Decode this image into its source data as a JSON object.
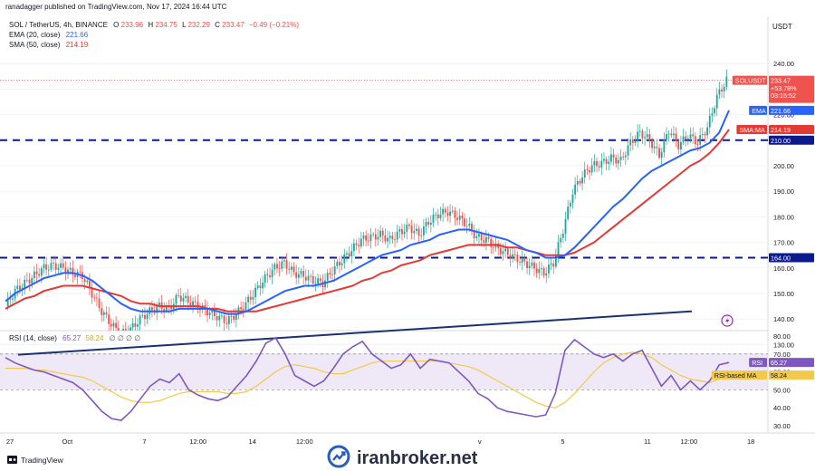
{
  "header": {
    "published": "ranadagger published on TradingView.com, Nov 17, 2024 16:44 UTC",
    "symbol": "SOL / TetherUS, 4h, BINANCE",
    "ohlc": {
      "o_label": "O",
      "o": "233.96",
      "h_label": "H",
      "h": "234.75",
      "l_label": "L",
      "l": "232.29",
      "c_label": "C",
      "c": "233.47",
      "change": "−0.49 (−0.21%)"
    },
    "ema_label": "EMA (20, close)",
    "ema_value": "221.66",
    "sma_label": "SMA (50, close)",
    "sma_value": "214.19"
  },
  "currency": "USDT",
  "price_axis": {
    "ticks": [
      "240.00",
      "230.00",
      "220.00",
      "210.00",
      "200.00",
      "190.00",
      "180.00",
      "170.00",
      "160.00",
      "150.00",
      "140.00",
      "130.00"
    ],
    "tick_values": [
      240,
      230,
      220,
      210,
      200,
      190,
      180,
      170,
      160,
      150,
      140,
      130
    ]
  },
  "badges": {
    "symbol_price": {
      "label": "SOLUSDT",
      "value": "233.47",
      "change": "+53.78%",
      "timer": "03:15:52"
    },
    "ema": {
      "label": "EMA",
      "value": "221.66"
    },
    "sma": {
      "label": "SMA:MA",
      "value": "214.19"
    },
    "level_210": "210.00",
    "level_164": "164.00"
  },
  "rsi": {
    "label": "RSI (14, close)",
    "value": "65.27",
    "ma_value": "58.24",
    "extras": "∅ ∅ ∅ ∅",
    "badge_label": "RSI",
    "ma_badge_label": "RSI-based MA",
    "ticks": [
      "80.00",
      "70.00",
      "60.00",
      "50.00",
      "40.00",
      "30.00"
    ],
    "tick_values": [
      80,
      70,
      60,
      50,
      40,
      30
    ]
  },
  "time_axis": [
    "27",
    "Oct",
    "7",
    "12:00",
    "14",
    "12:00",
    "v",
    "5",
    "11",
    "12:00",
    "18"
  ],
  "footer": {
    "brand": "TradingView",
    "watermark": "iranbroker.net"
  },
  "colors": {
    "up": "#26a69a",
    "down": "#ef5350",
    "ema": "#2962ff",
    "sma": "#e53935",
    "level": "#0d1a8c",
    "trend": "#1a3270",
    "rsi": "#7e57c2",
    "rsi_ma": "#f2c94c"
  },
  "chart_data": {
    "type": "line",
    "interval": "4h",
    "ylim": [
      130,
      245
    ],
    "horizontal_levels": [
      210,
      164
    ],
    "trendline": {
      "from": 126,
      "to": 143
    },
    "series": [
      {
        "name": "SOL / TetherUS",
        "values": [
          145,
          151,
          154,
          157,
          160,
          161,
          160,
          158,
          157,
          150,
          143,
          138,
          134,
          136,
          140,
          143,
          145,
          144,
          149,
          147,
          145,
          143,
          141,
          139,
          142,
          146,
          151,
          156,
          160,
          162,
          158,
          157,
          155,
          154,
          159,
          163,
          167,
          171,
          172,
          173,
          171,
          174,
          176,
          173,
          178,
          181,
          182,
          180,
          177,
          172,
          171,
          168,
          166,
          164,
          162,
          160,
          158,
          162,
          175,
          190,
          196,
          200,
          201,
          203,
          202,
          209,
          213,
          210,
          204,
          214,
          208,
          212,
          209,
          215,
          227,
          233.47
        ]
      },
      {
        "name": "EMA (20, close)",
        "values": [
          147,
          150,
          152,
          154,
          156,
          157,
          158,
          158,
          157,
          155,
          152,
          149,
          146,
          144,
          143,
          143,
          143,
          143,
          144,
          144,
          144,
          144,
          143,
          142,
          142,
          143,
          145,
          147,
          149,
          151,
          152,
          153,
          153,
          154,
          155,
          157,
          159,
          161,
          163,
          165,
          166,
          167,
          169,
          170,
          171,
          173,
          174,
          175,
          175,
          174,
          173,
          172,
          171,
          169,
          167,
          166,
          164,
          164,
          165,
          168,
          172,
          176,
          180,
          184,
          187,
          191,
          195,
          198,
          200,
          202,
          204,
          206,
          207,
          209,
          213,
          221.66
        ]
      },
      {
        "name": "SMA (50, close)",
        "values": [
          144,
          146,
          148,
          149,
          151,
          152,
          153,
          153,
          153,
          152,
          151,
          150,
          149,
          147,
          146,
          146,
          145,
          145,
          145,
          145,
          145,
          144,
          144,
          143,
          143,
          143,
          143,
          144,
          145,
          146,
          147,
          148,
          149,
          150,
          151,
          152,
          153,
          155,
          156,
          158,
          159,
          161,
          162,
          163,
          165,
          166,
          167,
          168,
          169,
          169,
          169,
          169,
          168,
          168,
          167,
          166,
          165,
          165,
          165,
          166,
          168,
          170,
          173,
          176,
          179,
          182,
          185,
          188,
          191,
          194,
          197,
          200,
          202,
          205,
          209,
          214.19
        ]
      }
    ],
    "rsi_series": {
      "name": "RSI (14, close)",
      "values": [
        68,
        65,
        63,
        61,
        60,
        58,
        56,
        54,
        50,
        44,
        38,
        34,
        33,
        38,
        45,
        52,
        56,
        54,
        59,
        50,
        47,
        45,
        44,
        46,
        52,
        58,
        66,
        76,
        79,
        70,
        58,
        55,
        52,
        55,
        62,
        70,
        74,
        77,
        70,
        66,
        62,
        64,
        70,
        62,
        67,
        66,
        65,
        60,
        55,
        48,
        45,
        40,
        38,
        37,
        36,
        35,
        36,
        48,
        72,
        78,
        74,
        70,
        68,
        70,
        66,
        70,
        72,
        62,
        52,
        58,
        50,
        55,
        50,
        55,
        64,
        65.27
      ]
    },
    "rsi_ma_series": {
      "name": "RSI-based MA",
      "values": [
        62,
        62,
        62,
        61,
        61,
        60,
        59,
        58,
        57,
        55,
        52,
        49,
        46,
        44,
        43,
        43,
        44,
        46,
        48,
        49,
        49,
        49,
        49,
        48,
        48,
        49,
        52,
        56,
        60,
        63,
        64,
        63,
        62,
        60,
        59,
        59,
        61,
        63,
        65,
        66,
        66,
        66,
        66,
        66,
        66,
        66,
        65,
        64,
        63,
        61,
        58,
        55,
        52,
        49,
        46,
        43,
        41,
        40,
        43,
        48,
        54,
        60,
        65,
        68,
        70,
        71,
        70,
        68,
        64,
        61,
        58,
        56,
        55,
        54,
        56,
        58.24
      ]
    }
  }
}
